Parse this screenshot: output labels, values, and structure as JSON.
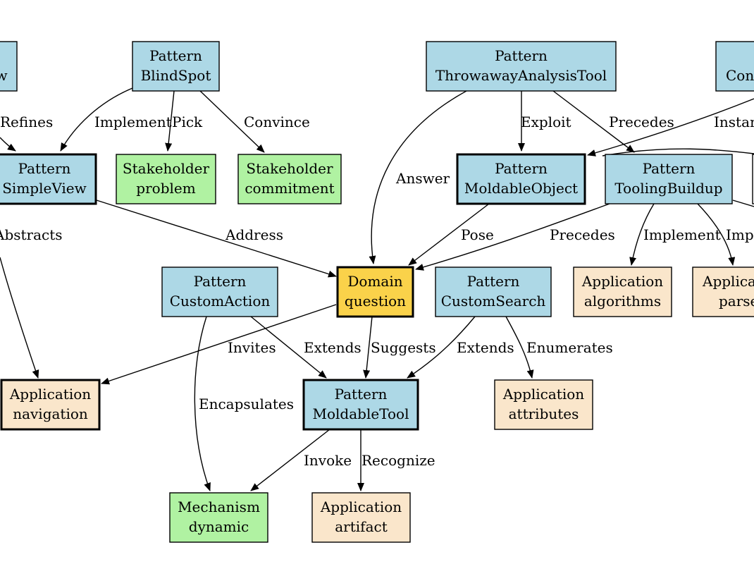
{
  "colors": {
    "pattern": "#add8e6",
    "stakeholder": "#b0f2a2",
    "application": "#fae6cb",
    "domain": "#fad24a",
    "mechanism": "#b0f2a2"
  },
  "nodes": {
    "partial_view": {
      "line1": "",
      "line2": "w"
    },
    "blindspot": {
      "line1": "Pattern",
      "line2": "BlindSpot"
    },
    "throwaway": {
      "line1": "Pattern",
      "line2": "ThrowawayAnalysisTool"
    },
    "partial_con": {
      "line1": "",
      "line2": "Con"
    },
    "simpleview": {
      "line1": "Pattern",
      "line2": "SimpleView"
    },
    "stake_problem": {
      "line1": "Stakeholder",
      "line2": "problem"
    },
    "stake_commit": {
      "line1": "Stakeholder",
      "line2": "commitment"
    },
    "moldableobject": {
      "line1": "Pattern",
      "line2": "MoldableObject"
    },
    "toolingbuildup": {
      "line1": "Pattern",
      "line2": "ToolingBuildup"
    },
    "customaction": {
      "line1": "Pattern",
      "line2": "CustomAction"
    },
    "domain_question": {
      "line1": "Domain",
      "line2": "question"
    },
    "customsearch": {
      "line1": "Pattern",
      "line2": "CustomSearch"
    },
    "app_algorithms": {
      "line1": "Application",
      "line2": "algorithms"
    },
    "app_parsers": {
      "line1": "Applica",
      "line2": "parse"
    },
    "app_navigation": {
      "line1": "Application",
      "line2": "navigation"
    },
    "moldabletool": {
      "line1": "Pattern",
      "line2": "MoldableTool"
    },
    "app_attributes": {
      "line1": "Application",
      "line2": "attributes"
    },
    "mech_dynamic": {
      "line1": "Mechanism",
      "line2": "dynamic"
    },
    "app_artifact": {
      "line1": "Application",
      "line2": "artifact"
    }
  },
  "edge_labels": {
    "refines": "Refines",
    "implement_sv": "Implement",
    "pick": "Pick",
    "convince": "Convince",
    "answer": "Answer",
    "exploit": "Exploit",
    "precedes_top": "Precedes",
    "instan": "Instan",
    "abstracts": "Abstracts",
    "address": "Address",
    "pose": "Pose",
    "precedes_mid": "Precedes",
    "implement_alg": "Implement",
    "impl_partial": "Impl",
    "invites": "Invites",
    "extends_ca": "Extends",
    "suggests": "Suggests",
    "extends_cs": "Extends",
    "enumerates": "Enumerates",
    "encapsulates": "Encapsulates",
    "invoke": "Invoke",
    "recognize": "Recognize"
  }
}
